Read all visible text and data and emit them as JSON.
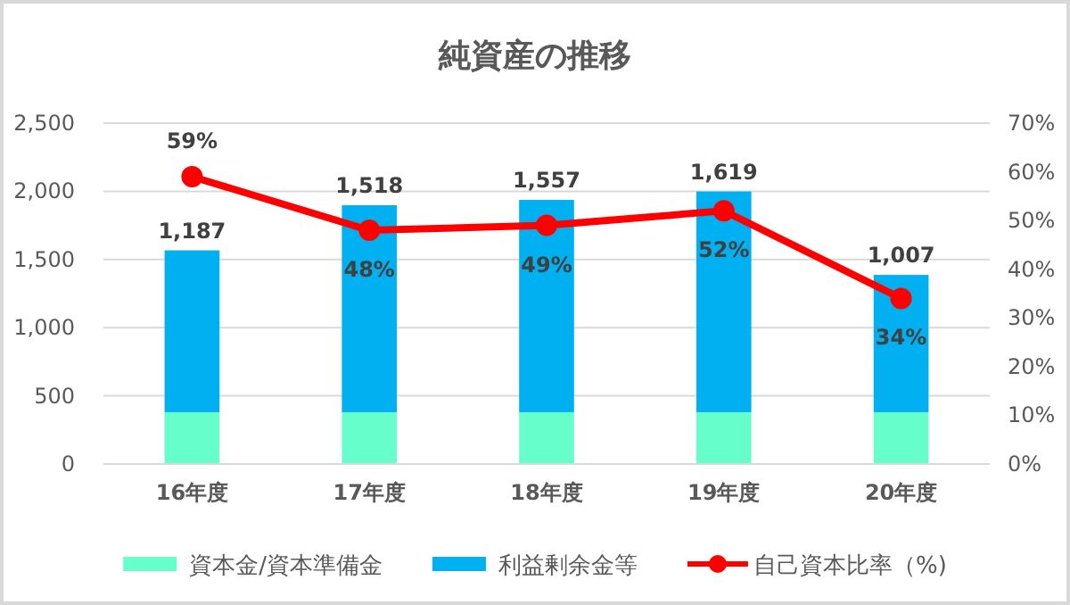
{
  "chart_data": {
    "type": "bar",
    "title": "純資産の推移",
    "categories": [
      "16年度",
      "17年度",
      "18年度",
      "19年度",
      "20年度"
    ],
    "stacked": true,
    "series": [
      {
        "name": "資本金/資本準備金",
        "color": "#66ffcc",
        "values": [
          380,
          380,
          380,
          380,
          380
        ]
      },
      {
        "name": "利益剰余金等",
        "color": "#00b0f0",
        "values": [
          1187,
          1518,
          1557,
          1619,
          1007
        ],
        "value_labels": [
          "1,187",
          "1,518",
          "1,557",
          "1,619",
          "1,007"
        ]
      },
      {
        "name": "自己資本比率（%)",
        "type": "line",
        "axis": "y2",
        "color": "#ff0000",
        "marker": "circle",
        "values": [
          59,
          48,
          49,
          52,
          34
        ],
        "value_labels": [
          "59%",
          "48%",
          "49%",
          "52%",
          "34%"
        ]
      }
    ],
    "ylim": [
      0,
      2500
    ],
    "yticks": [
      0,
      {
        "value": 500,
        "label": "500"
      },
      {
        "value": 1000,
        "label": "1,000"
      },
      {
        "value": 1500,
        "label": "1,500"
      },
      {
        "value": 2000,
        "label": "2,000"
      },
      {
        "value": 2500,
        "label": "2,500"
      }
    ],
    "y2lim": [
      0,
      70
    ],
    "y2ticks": [
      {
        "value": 0,
        "label": "0%"
      },
      {
        "value": 10,
        "label": "10%"
      },
      {
        "value": 20,
        "label": "20%"
      },
      {
        "value": 30,
        "label": "30%"
      },
      {
        "value": 40,
        "label": "40%"
      },
      {
        "value": 50,
        "label": "50%"
      },
      {
        "value": 60,
        "label": "60%"
      },
      {
        "value": 70,
        "label": "70%"
      }
    ],
    "grid": "y",
    "legend": "bottom"
  }
}
